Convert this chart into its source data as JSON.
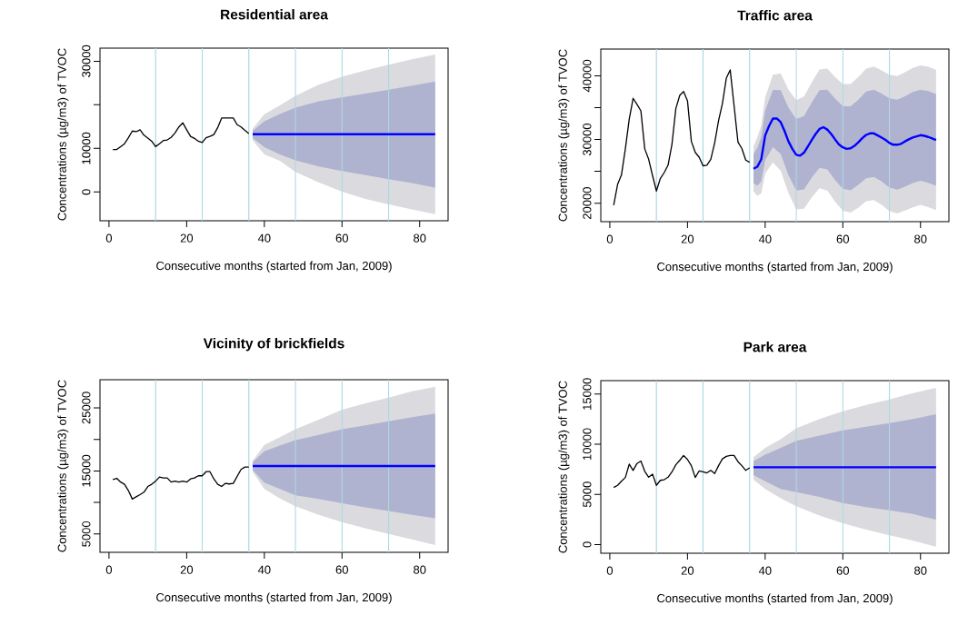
{
  "chart_data": [
    {
      "type": "line",
      "title": "Residential area",
      "xlabel": "Consecutive months (started from Jan, 2009)",
      "ylabel": "Concentrations (µg/m3) of TVOC",
      "xlim": [
        -2.32,
        87.32
      ],
      "ylim": [
        -6600,
        33000
      ],
      "xticks": [
        0,
        20,
        40,
        60,
        80
      ],
      "yticks": [
        0,
        10000,
        {
          "value": 20000,
          "label": null
        },
        30000
      ],
      "ref_lines": [
        {
          "axis": "x",
          "value": 12,
          "color": "#add8e6"
        },
        {
          "axis": "x",
          "value": 24,
          "color": "#add8e6"
        },
        {
          "axis": "x",
          "value": 36,
          "color": "#add8e6"
        },
        {
          "axis": "x",
          "value": 48,
          "color": "#add8e6"
        },
        {
          "axis": "x",
          "value": 60,
          "color": "#add8e6"
        },
        {
          "axis": "x",
          "value": 72,
          "color": "#add8e6"
        }
      ],
      "series": [
        {
          "color": "#000000",
          "x": [
            1,
            2,
            3,
            4,
            5,
            6,
            7,
            8,
            9,
            10,
            11,
            12,
            13,
            14,
            15,
            16,
            17,
            18,
            19,
            20,
            21,
            22,
            23,
            24,
            25,
            26,
            27,
            28,
            29,
            30,
            31,
            32,
            33,
            34,
            35,
            36
          ],
          "values": [
            9750,
            9750,
            10400,
            11070,
            12450,
            13980,
            13830,
            14270,
            13030,
            12380,
            11650,
            10410,
            11070,
            11800,
            11940,
            12520,
            13540,
            14930,
            15870,
            14270,
            12740,
            12300,
            11650,
            11360,
            12450,
            12740,
            13180,
            14780,
            16970,
            16970,
            16970,
            16970,
            15440,
            14930,
            14130,
            13400
          ]
        },
        {
          "color": "#dbdbdf",
          "x": [
            37,
            40,
            44,
            48,
            54,
            60,
            66,
            72,
            78,
            84
          ],
          "values": [
            null,
            null,
            null,
            null,
            null,
            null,
            null,
            null,
            null,
            null
          ],
          "lower": [
            11870,
            8590,
            7140,
            4590,
            2180,
            70,
            -1600,
            -2840,
            -4000,
            -5100
          ],
          "upper": [
            14560,
            17840,
            19880,
            22060,
            24610,
            26430,
            27890,
            29200,
            30440,
            31530
          ]
        },
        {
          "color": "#b0b3cf",
          "x": [
            37,
            40,
            44,
            48,
            54,
            60,
            66,
            72,
            78,
            84
          ],
          "values": [
            null,
            null,
            null,
            null,
            null,
            null,
            null,
            null,
            null,
            null
          ],
          "lower": [
            12380,
            10270,
            8590,
            7280,
            5830,
            4810,
            3860,
            2910,
            2040,
            1020
          ],
          "upper": [
            14050,
            16240,
            17910,
            19370,
            20830,
            21700,
            22570,
            23450,
            24400,
            25340
          ]
        },
        {
          "color": "#0000ff",
          "x": [
            37,
            40,
            44,
            48,
            54,
            60,
            66,
            72,
            78,
            84
          ],
          "values": [
            13250,
            13250,
            13250,
            13250,
            13250,
            13250,
            13250,
            13250,
            13250,
            13250
          ]
        }
      ]
    },
    {
      "type": "line",
      "title": "Traffic area",
      "xlabel": "Consecutive months (started from Jan, 2009)",
      "ylabel": "Concentrations (µg/m3) of TVOC",
      "xlim": [
        -2.32,
        87.32
      ],
      "ylim": [
        17100,
        44200
      ],
      "xticks": [
        0,
        20,
        40,
        60,
        80
      ],
      "yticks": [
        20000,
        {
          "value": 25000,
          "label": null
        },
        30000,
        {
          "value": 35000,
          "label": null
        },
        40000
      ],
      "ref_lines": [
        {
          "axis": "x",
          "value": 12,
          "color": "#add8e6"
        },
        {
          "axis": "x",
          "value": 24,
          "color": "#add8e6"
        },
        {
          "axis": "x",
          "value": 36,
          "color": "#add8e6"
        },
        {
          "axis": "x",
          "value": 48,
          "color": "#add8e6"
        },
        {
          "axis": "x",
          "value": 60,
          "color": "#add8e6"
        },
        {
          "axis": "x",
          "value": 72,
          "color": "#add8e6"
        }
      ],
      "series": [
        {
          "color": "#000000",
          "x": [
            1,
            2,
            3,
            4,
            5,
            6,
            7,
            8,
            9,
            10,
            11,
            12,
            13,
            14,
            15,
            16,
            17,
            18,
            19,
            20,
            21,
            22,
            23,
            24,
            25,
            26,
            27,
            28,
            29,
            30,
            31,
            32,
            33,
            34,
            35,
            36
          ],
          "values": [
            19670,
            22940,
            24430,
            28530,
            33190,
            36460,
            35520,
            34500,
            28530,
            26900,
            24340,
            21910,
            23870,
            24800,
            25970,
            29230,
            34830,
            36920,
            37530,
            36080,
            29700,
            27970,
            27230,
            25870,
            25970,
            26900,
            29460,
            32960,
            35660,
            39630,
            40930,
            35290,
            29600,
            28580,
            26760,
            26430
          ]
        },
        {
          "color": "#dbdbdf",
          "x": [
            37,
            38,
            39,
            40,
            42,
            44,
            46,
            48,
            50,
            52,
            54,
            56,
            58,
            60,
            62,
            64,
            66,
            68,
            70,
            72,
            74,
            76,
            78,
            80,
            82,
            84
          ],
          "values": [
            null,
            null,
            null,
            null,
            null,
            null,
            null,
            null,
            null,
            null,
            null,
            null,
            null,
            null,
            null,
            null,
            null,
            null,
            null,
            null,
            null,
            null,
            null,
            null,
            null,
            null
          ],
          "lower": [
            21890,
            21140,
            21540,
            24660,
            26400,
            25080,
            21590,
            19030,
            19130,
            20900,
            22330,
            22000,
            20230,
            18810,
            18520,
            19310,
            20320,
            20480,
            19740,
            18750,
            18390,
            18840,
            19360,
            19740,
            19380,
            18910
          ],
          "upper": [
            28930,
            30320,
            32260,
            36600,
            40180,
            40380,
            37810,
            36170,
            36730,
            38960,
            40990,
            41120,
            39810,
            38710,
            38720,
            39810,
            41120,
            41440,
            40860,
            40170,
            39970,
            40560,
            41240,
            41620,
            41420,
            40950
          ]
        },
        {
          "color": "#b0b3cf",
          "x": [
            37,
            38,
            39,
            40,
            42,
            44,
            46,
            48,
            50,
            52,
            54,
            56,
            58,
            60,
            62,
            64,
            66,
            68,
            70,
            72,
            74,
            76,
            78,
            80,
            82,
            84
          ],
          "values": [
            null,
            null,
            null,
            null,
            null,
            null,
            null,
            null,
            null,
            null,
            null,
            null,
            null,
            null,
            null,
            null,
            null,
            null,
            null,
            null,
            null,
            null,
            null,
            null,
            null,
            null
          ],
          "lower": [
            23110,
            22730,
            23400,
            26730,
            28790,
            27730,
            24400,
            22000,
            22180,
            24030,
            25560,
            25310,
            23620,
            22260,
            22020,
            22860,
            23920,
            24110,
            23400,
            22460,
            22130,
            22600,
            23150,
            23530,
            23200,
            22730
          ],
          "upper": [
            27710,
            28730,
            30400,
            34530,
            37790,
            37730,
            35000,
            33200,
            33680,
            35830,
            37760,
            37810,
            36420,
            35260,
            35220,
            36260,
            37520,
            37810,
            37200,
            36460,
            36230,
            36800,
            37450,
            37830,
            37600,
            37130
          ]
        },
        {
          "color": "#0000ff",
          "x": [
            37,
            38,
            39,
            40,
            41,
            42,
            43,
            44,
            45,
            46,
            47,
            48,
            49,
            50,
            51,
            52,
            53,
            54,
            55,
            56,
            57,
            58,
            59,
            60,
            61,
            62,
            63,
            64,
            65,
            66,
            67,
            68,
            69,
            70,
            71,
            72,
            73,
            74,
            75,
            76,
            77,
            78,
            79,
            80,
            81,
            82,
            83,
            84
          ],
          "values": [
            25410,
            25730,
            26900,
            30630,
            32120,
            33290,
            33290,
            32730,
            31330,
            29700,
            28530,
            27600,
            27460,
            27930,
            28900,
            29930,
            30860,
            31660,
            31930,
            31560,
            30860,
            30020,
            29230,
            28760,
            28530,
            28620,
            29000,
            29560,
            30210,
            30720,
            30960,
            30960,
            30630,
            30300,
            29930,
            29460,
            29180,
            29180,
            29320,
            29700,
            30020,
            30300,
            30490,
            30680,
            30580,
            30400,
            30160,
            29930
          ]
        }
      ]
    },
    {
      "type": "line",
      "title": "Vicinity of brickfields",
      "xlabel": "Consecutive months (started from Jan, 2009)",
      "ylabel": "Concentrations (µg/m3) of TVOC",
      "xlim": [
        -2.32,
        87.32
      ],
      "ylim": [
        2100,
        29450
      ],
      "xticks": [
        0,
        20,
        40,
        60,
        80
      ],
      "yticks": [
        5000,
        {
          "value": 10000,
          "label": null
        },
        15000,
        {
          "value": 20000,
          "label": null
        },
        25000
      ],
      "ref_lines": [
        {
          "axis": "x",
          "value": 12,
          "color": "#add8e6"
        },
        {
          "axis": "x",
          "value": 24,
          "color": "#add8e6"
        },
        {
          "axis": "x",
          "value": 36,
          "color": "#add8e6"
        },
        {
          "axis": "x",
          "value": 48,
          "color": "#add8e6"
        },
        {
          "axis": "x",
          "value": 60,
          "color": "#add8e6"
        },
        {
          "axis": "x",
          "value": 72,
          "color": "#add8e6"
        }
      ],
      "series": [
        {
          "color": "#000000",
          "x": [
            1,
            2,
            3,
            4,
            5,
            6,
            7,
            8,
            9,
            10,
            11,
            12,
            13,
            14,
            15,
            16,
            17,
            18,
            19,
            20,
            21,
            22,
            23,
            24,
            25,
            26,
            27,
            28,
            29,
            30,
            31,
            32,
            33,
            34,
            35,
            36
          ],
          "values": [
            13630,
            13830,
            13230,
            12880,
            11880,
            10540,
            10890,
            11240,
            11630,
            12530,
            12880,
            13380,
            14030,
            13880,
            13880,
            13230,
            13380,
            13230,
            13380,
            13230,
            13730,
            13880,
            14230,
            14230,
            14880,
            14880,
            13730,
            12880,
            12530,
            13030,
            12930,
            13030,
            14130,
            15230,
            15620,
            15620
          ]
        },
        {
          "color": "#dbdbdf",
          "x": [
            37,
            40,
            44,
            48,
            54,
            60,
            66,
            72,
            78,
            84
          ],
          "values": [
            null,
            null,
            null,
            null,
            null,
            null,
            null,
            null,
            null,
            null
          ],
          "lower": [
            14880,
            12130,
            10640,
            9390,
            8040,
            6900,
            5900,
            5000,
            4150,
            3250
          ],
          "upper": [
            16620,
            19120,
            20360,
            21610,
            23110,
            24700,
            25700,
            26600,
            27600,
            28340
          ]
        },
        {
          "color": "#b0b3cf",
          "x": [
            37,
            40,
            44,
            48,
            54,
            60,
            66,
            72,
            78,
            84
          ],
          "values": [
            null,
            null,
            null,
            null,
            null,
            null,
            null,
            null,
            null,
            null
          ],
          "lower": [
            15130,
            13130,
            12130,
            11140,
            10540,
            9890,
            9240,
            8640,
            8040,
            7490
          ],
          "upper": [
            16370,
            18120,
            19020,
            19860,
            20710,
            21610,
            22210,
            22860,
            23510,
            24100
          ]
        },
        {
          "color": "#0000ff",
          "x": [
            37,
            40,
            44,
            48,
            54,
            60,
            66,
            72,
            78,
            84
          ],
          "values": [
            15770,
            15770,
            15770,
            15770,
            15770,
            15770,
            15770,
            15770,
            15770,
            15770
          ]
        }
      ]
    },
    {
      "type": "line",
      "title": "Park area",
      "xlabel": "Consecutive months (started from Jan, 2009)",
      "ylabel": "Concentrations (µg/m3) of TVOC",
      "xlim": [
        -2.32,
        87.32
      ],
      "ylim": [
        -870,
        16340
      ],
      "xticks": [
        0,
        20,
        40,
        60,
        80
      ],
      "yticks": [
        0,
        5000,
        10000,
        15000
      ],
      "ref_lines": [
        {
          "axis": "x",
          "value": 12,
          "color": "#add8e6"
        },
        {
          "axis": "x",
          "value": 24,
          "color": "#add8e6"
        },
        {
          "axis": "x",
          "value": 36,
          "color": "#add8e6"
        },
        {
          "axis": "x",
          "value": 48,
          "color": "#add8e6"
        },
        {
          "axis": "x",
          "value": 60,
          "color": "#add8e6"
        },
        {
          "axis": "x",
          "value": 72,
          "color": "#add8e6"
        }
      ],
      "series": [
        {
          "color": "#000000",
          "x": [
            1,
            2,
            3,
            4,
            5,
            6,
            7,
            8,
            9,
            10,
            11,
            12,
            13,
            14,
            15,
            16,
            17,
            18,
            19,
            20,
            21,
            22,
            23,
            24,
            25,
            26,
            27,
            28,
            29,
            30,
            31,
            32,
            33,
            34,
            35,
            36
          ],
          "values": [
            5680,
            5900,
            6310,
            6680,
            8010,
            7390,
            8080,
            8320,
            7300,
            6710,
            7020,
            5900,
            6400,
            6460,
            6710,
            7240,
            7950,
            8390,
            8880,
            8480,
            7860,
            6680,
            7330,
            7240,
            7140,
            7390,
            7080,
            7860,
            8540,
            8790,
            8880,
            8880,
            8260,
            7860,
            7390,
            7640
          ]
        },
        {
          "color": "#dbdbdf",
          "x": [
            37,
            40,
            44,
            48,
            54,
            60,
            66,
            72,
            78,
            84
          ],
          "values": [
            null,
            null,
            null,
            null,
            null,
            null,
            null,
            null,
            null,
            null
          ],
          "lower": [
            6460,
            5530,
            4600,
            3820,
            2890,
            2110,
            1490,
            930,
            400,
            -220
          ],
          "upper": [
            8700,
            9630,
            10500,
            11590,
            12520,
            13290,
            13910,
            14470,
            15090,
            15620
          ]
        },
        {
          "color": "#b0b3cf",
          "x": [
            37,
            40,
            44,
            48,
            54,
            60,
            66,
            72,
            78,
            84
          ],
          "values": [
            null,
            null,
            null,
            null,
            null,
            null,
            null,
            null,
            null,
            null
          ],
          "lower": [
            6930,
            6310,
            5530,
            5220,
            4750,
            4130,
            3730,
            3420,
            3040,
            2480
          ],
          "upper": [
            8320,
            8950,
            9630,
            10340,
            10870,
            11370,
            11740,
            12110,
            12520,
            12980
          ]
        },
        {
          "color": "#0000ff",
          "x": [
            37,
            40,
            44,
            48,
            54,
            60,
            66,
            72,
            78,
            84
          ],
          "values": [
            7700,
            7700,
            7700,
            7700,
            7700,
            7700,
            7700,
            7700,
            7700,
            7700
          ]
        }
      ]
    }
  ]
}
